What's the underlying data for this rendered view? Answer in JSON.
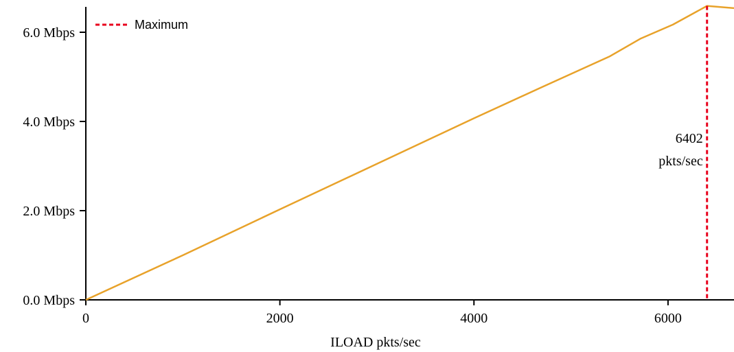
{
  "chart_data": {
    "type": "line",
    "title": "",
    "xlabel": "ILOAD pkts/sec",
    "ylabel": "",
    "xlim": [
      0,
      6680
    ],
    "ylim": [
      0,
      6.0
    ],
    "grid": false,
    "x_ticks": [
      0,
      2000,
      4000,
      6000
    ],
    "x_tick_labels": [
      "0",
      "2000",
      "4000",
      "6000"
    ],
    "y_ticks": [
      0,
      2,
      4,
      6
    ],
    "y_tick_labels": [
      "0.0 Mbps",
      "2.0 Mbps",
      "4.0 Mbps",
      "6.0 Mbps"
    ],
    "colors": {
      "series": "#e8a22a",
      "maximum": "#e8001c",
      "axis": "#000000"
    },
    "series": [
      {
        "color": "#e8a22a",
        "x": [
          0,
          1000,
          2000,
          3000,
          4000,
          4700,
          5400,
          5720,
          6050,
          6402,
          6680
        ],
        "y": [
          0.0,
          1.0,
          2.03,
          3.05,
          4.07,
          4.77,
          5.46,
          5.86,
          6.17,
          6.59,
          6.54
        ]
      }
    ],
    "legend": {
      "position": "top-left",
      "entries": [
        {
          "label": "Maximum",
          "style": "dashed",
          "color": "#e8001c"
        }
      ]
    },
    "maximum": {
      "x": 6402,
      "label_line1": "6402",
      "label_line2": "pkts/sec"
    }
  }
}
